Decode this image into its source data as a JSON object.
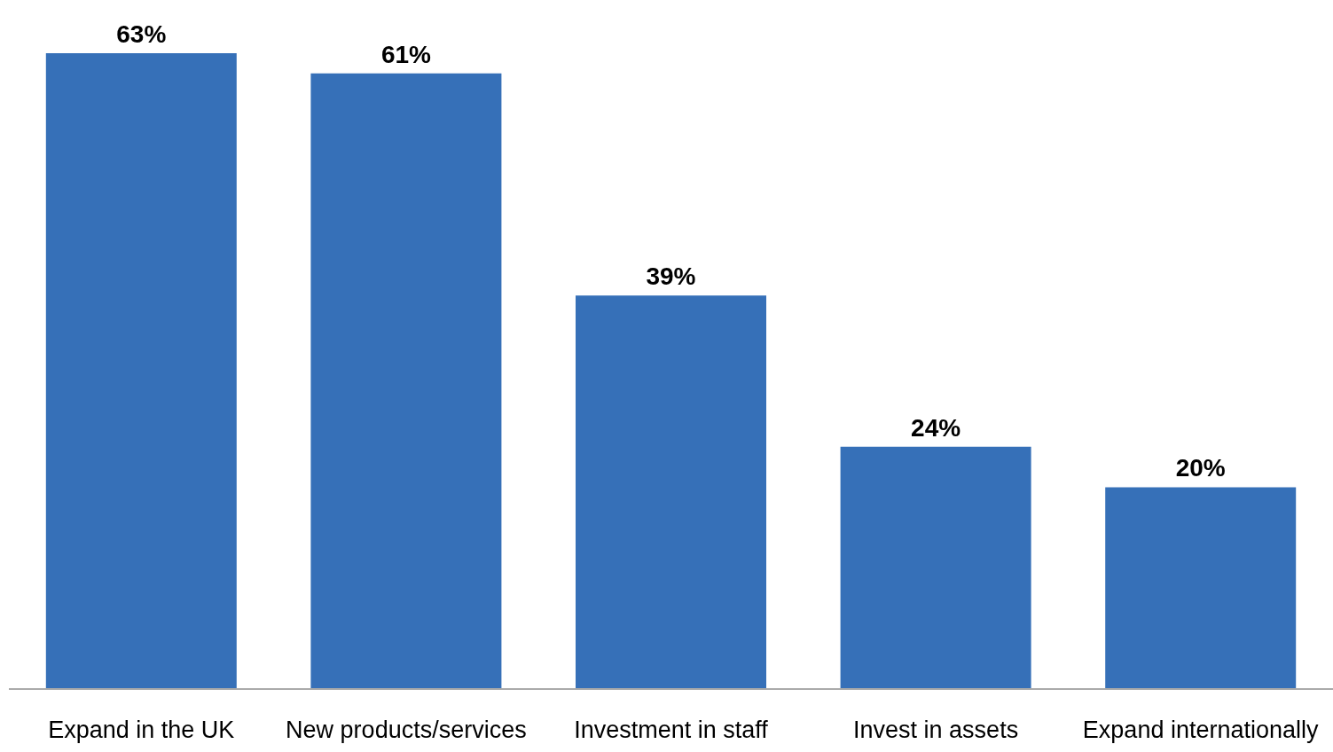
{
  "chart_data": {
    "type": "bar",
    "categories": [
      "Expand in the UK",
      "New products/services",
      "Investment in staff",
      "Invest in assets",
      "Expand internationally"
    ],
    "values": [
      63,
      61,
      39,
      24,
      20
    ],
    "value_labels": [
      "63%",
      "61%",
      "39%",
      "24%",
      "20%"
    ],
    "color": "#3670b8"
  }
}
